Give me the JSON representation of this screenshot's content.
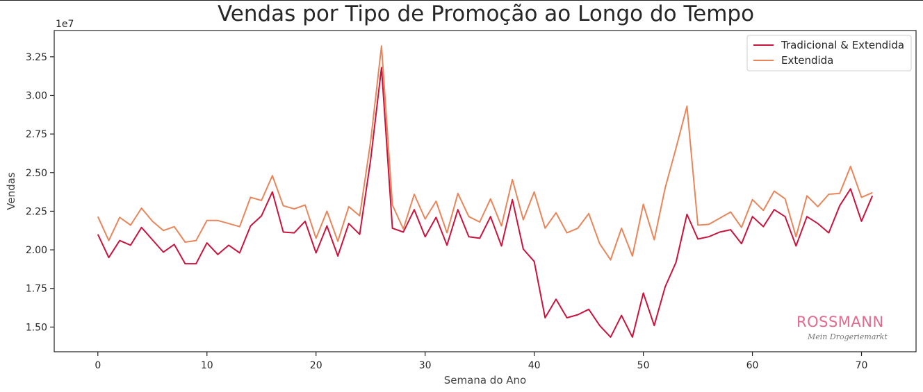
{
  "chart_data": {
    "type": "line",
    "title": "Vendas por Tipo de Promoção ao Longo do Tempo",
    "xlabel": "Semana do Ano",
    "ylabel": "Vendas",
    "y_scale_label": "1e7",
    "xlim": [
      -4,
      75
    ],
    "ylim": [
      13400000,
      34200000
    ],
    "x_ticks": [
      0,
      10,
      20,
      30,
      40,
      50,
      60,
      70
    ],
    "y_ticks": [
      15000000,
      17500000,
      20000000,
      22500000,
      25000000,
      27500000,
      30000000,
      32500000
    ],
    "y_tick_labels": [
      "1.50",
      "1.75",
      "2.00",
      "2.25",
      "2.50",
      "2.75",
      "3.00",
      "3.25"
    ],
    "grid": false,
    "legend_position": "top-right",
    "x": [
      0,
      1,
      2,
      3,
      4,
      5,
      6,
      7,
      8,
      9,
      10,
      11,
      12,
      13,
      14,
      15,
      16,
      17,
      18,
      19,
      20,
      21,
      22,
      23,
      24,
      25,
      26,
      27,
      28,
      29,
      30,
      31,
      32,
      33,
      34,
      35,
      36,
      37,
      38,
      39,
      40,
      41,
      42,
      43,
      44,
      45,
      46,
      47,
      48,
      49,
      50,
      51,
      52,
      53,
      54,
      55,
      56,
      57,
      58,
      59,
      60,
      61,
      62,
      63,
      64,
      65,
      66,
      67,
      68,
      69,
      70,
      71
    ],
    "series": [
      {
        "name": "Tradicional & Extendida",
        "color": "#c8143c",
        "values": [
          21000000,
          19500000,
          20600000,
          20300000,
          21450000,
          20650000,
          19850000,
          20350000,
          19100000,
          19100000,
          20450000,
          19700000,
          20300000,
          19800000,
          21550000,
          22200000,
          23750000,
          21150000,
          21100000,
          21850000,
          19800000,
          21550000,
          19600000,
          21700000,
          21000000,
          25800000,
          31800000,
          21400000,
          21150000,
          22600000,
          20850000,
          22100000,
          20300000,
          22600000,
          20850000,
          20750000,
          22150000,
          20250000,
          23250000,
          20050000,
          19250000,
          15600000,
          16800000,
          15600000,
          15800000,
          16150000,
          15100000,
          14350000,
          15750000,
          14350000,
          17200000,
          15100000,
          17600000,
          19200000,
          22300000,
          20700000,
          20850000,
          21150000,
          21300000,
          20400000,
          22150000,
          21500000,
          22600000,
          22150000,
          20250000,
          22150000,
          21700000,
          21100000,
          22850000,
          23950000,
          21850000,
          23500000
        ]
      },
      {
        "name": "Extendida",
        "color": "#e8855a",
        "values": [
          22150000,
          20600000,
          22100000,
          21600000,
          22700000,
          21850000,
          21250000,
          21500000,
          20500000,
          20600000,
          21900000,
          21900000,
          21700000,
          21500000,
          23400000,
          23200000,
          24800000,
          22850000,
          22650000,
          22900000,
          20750000,
          22500000,
          20550000,
          22800000,
          22200000,
          27000000,
          33200000,
          22900000,
          21350000,
          23600000,
          22000000,
          23150000,
          21100000,
          23650000,
          22150000,
          21800000,
          23300000,
          21550000,
          24550000,
          21950000,
          23750000,
          21400000,
          22400000,
          21100000,
          21400000,
          22350000,
          20400000,
          19350000,
          21400000,
          19600000,
          22950000,
          20650000,
          24000000,
          26600000,
          29300000,
          21600000,
          21650000,
          22050000,
          22450000,
          21450000,
          23250000,
          22550000,
          23800000,
          23300000,
          20850000,
          23500000,
          22800000,
          23600000,
          23650000,
          25400000,
          23400000,
          23700000
        ]
      }
    ]
  },
  "logo": {
    "brand": "ROSSMANN",
    "tagline": "Mein Drogeriemarkt"
  }
}
